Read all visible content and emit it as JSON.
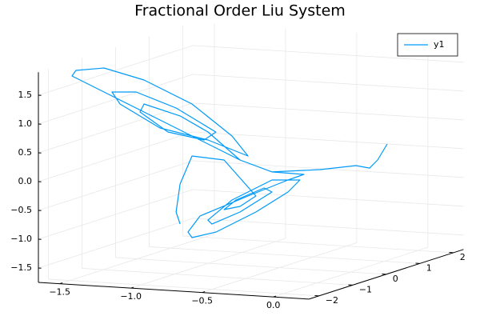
{
  "chart_data": {
    "type": "line3d",
    "title": "Fractional Order Liu System",
    "series": [
      {
        "name": "y1",
        "color": "#009af9",
        "x": [
          -0.097,
          -0.094,
          -0.103,
          -0.151,
          -0.262,
          -0.481,
          -0.588,
          -0.985,
          -1.434,
          -1.603,
          -1.575,
          -1.378,
          -1.097,
          -0.76,
          -0.479,
          -0.367,
          -0.648,
          -0.985,
          -1.266,
          -1.322,
          -1.153,
          -0.872,
          -0.592,
          -0.676,
          -0.929,
          -1.125,
          -1.097,
          -0.844,
          -0.648,
          -0.588,
          -0.481,
          -0.21,
          -0.322,
          -0.603,
          -0.94,
          -1.024,
          -0.996,
          -0.828,
          -0.547,
          -0.322,
          -0.238,
          -0.434,
          -0.715,
          -0.884,
          -0.856,
          -0.659,
          -0.434,
          -0.49,
          -0.687,
          -0.771,
          -0.659,
          -0.547,
          -0.771,
          -0.996,
          -1.08,
          -1.108,
          -1.08
        ],
        "y": [
          1.5,
          1.2,
          1.0,
          0.8,
          0.2,
          -0.3,
          -0.8,
          -1.5,
          -1.5,
          -1.5,
          -1.5,
          -1.5,
          -1.5,
          -1.5,
          -1.5,
          -1.5,
          -1.5,
          -1.5,
          -1.5,
          -1.5,
          -1.5,
          -1.5,
          -1.5,
          -1.5,
          -1.5,
          -1.5,
          -1.5,
          -1.5,
          -1.5,
          -0.8,
          -0.3,
          -0.5,
          -0.5,
          -0.5,
          -0.5,
          -0.5,
          -0.5,
          -0.5,
          -0.5,
          -0.5,
          -0.5,
          -0.5,
          -0.5,
          -0.5,
          -0.5,
          -0.5,
          -0.5,
          -0.5,
          -0.5,
          -0.5,
          -0.5,
          -0.5,
          -0.5,
          -0.5,
          -0.5,
          -0.5,
          -0.5
        ],
        "z": [
          0.178,
          -0.044,
          -0.147,
          -0.074,
          -0.048,
          -0.029,
          0.256,
          1.021,
          1.508,
          1.69,
          1.792,
          1.864,
          1.699,
          1.333,
          0.821,
          0.49,
          0.725,
          0.882,
          1.256,
          1.456,
          1.482,
          1.247,
          0.872,
          0.721,
          0.821,
          1.139,
          1.282,
          1.113,
          0.864,
          0.256,
          -0.029,
          0.007,
          -0.107,
          -0.428,
          -0.826,
          -1.117,
          -1.21,
          -1.088,
          -0.697,
          -0.315,
          -0.094,
          -0.124,
          -0.514,
          -0.888,
          -0.953,
          -0.714,
          -0.332,
          -0.271,
          -0.51,
          -0.689,
          -0.617,
          -0.419,
          0.172,
          0.207,
          -0.292,
          -0.782,
          -0.986
        ]
      }
    ],
    "xlim": [
      -1.65,
      0.25
    ],
    "ylim": [
      -2.3,
      2.3
    ],
    "zlim": [
      -1.75,
      1.9
    ],
    "xticks": [
      {
        "value": -1.5,
        "label": "−1.5"
      },
      {
        "value": -1.0,
        "label": "−1.0"
      },
      {
        "value": -0.5,
        "label": "−0.5"
      },
      {
        "value": 0.0,
        "label": "0.0"
      }
    ],
    "yticks": [
      {
        "value": -2,
        "label": "−2"
      },
      {
        "value": -1,
        "label": "−1"
      },
      0,
      1,
      2
    ],
    "zticks": [
      {
        "value": -1.5,
        "label": "−1.5"
      },
      {
        "value": -1.0,
        "label": "−1.0"
      },
      {
        "value": -0.5,
        "label": "−0.5"
      },
      {
        "value": 0.0,
        "label": "0.0"
      },
      0.5,
      {
        "value": 1.0,
        "label": "1.0"
      },
      1.5
    ],
    "grid": true,
    "legend": "top-right"
  }
}
